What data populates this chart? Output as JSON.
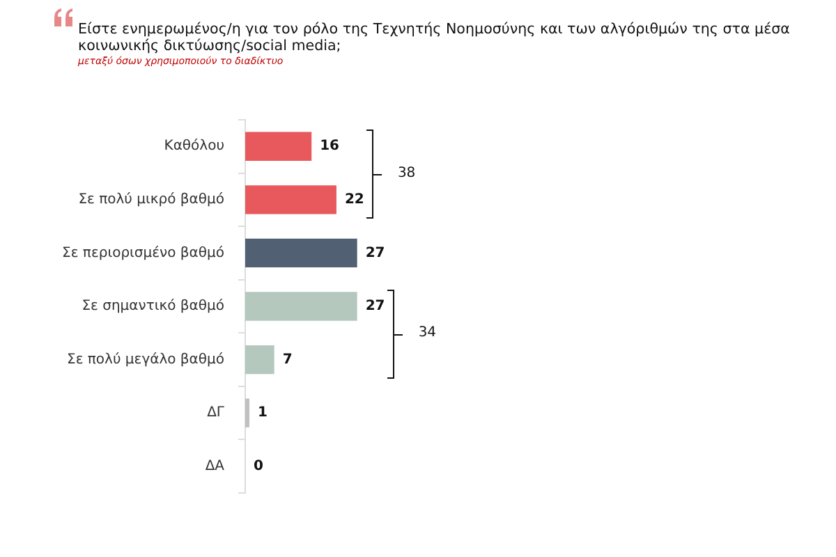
{
  "chart_data": {
    "type": "bar",
    "orientation": "horizontal",
    "title": "Είστε ενημερωμένος/η για τον ρόλο της Τεχνητής Νοημοσύνης και των αλγόριθμών της στα μέσα κοινωνικής δικτύωσης/social media;",
    "subtitle": "μεταξύ όσων χρησιμοποιούν το διαδίκτυο",
    "categories": [
      "Καθόλου",
      "Σε πολύ μικρό βαθμό",
      "Σε περιορισμένο βαθμό",
      "Σε σημαντικό βαθμό",
      "Σε πολύ μεγάλο βαθμό",
      "ΔΓ",
      "ΔΑ"
    ],
    "values": [
      16,
      22,
      27,
      27,
      7,
      1,
      0
    ],
    "colors": [
      "#e8595d",
      "#e8595d",
      "#526074",
      "#b4c8be",
      "#b4c8be",
      "#c0c0c0",
      "#c0c0c0"
    ],
    "tick_labels": "y",
    "data_labels": true,
    "annotations": [
      "38",
      "34"
    ]
  }
}
